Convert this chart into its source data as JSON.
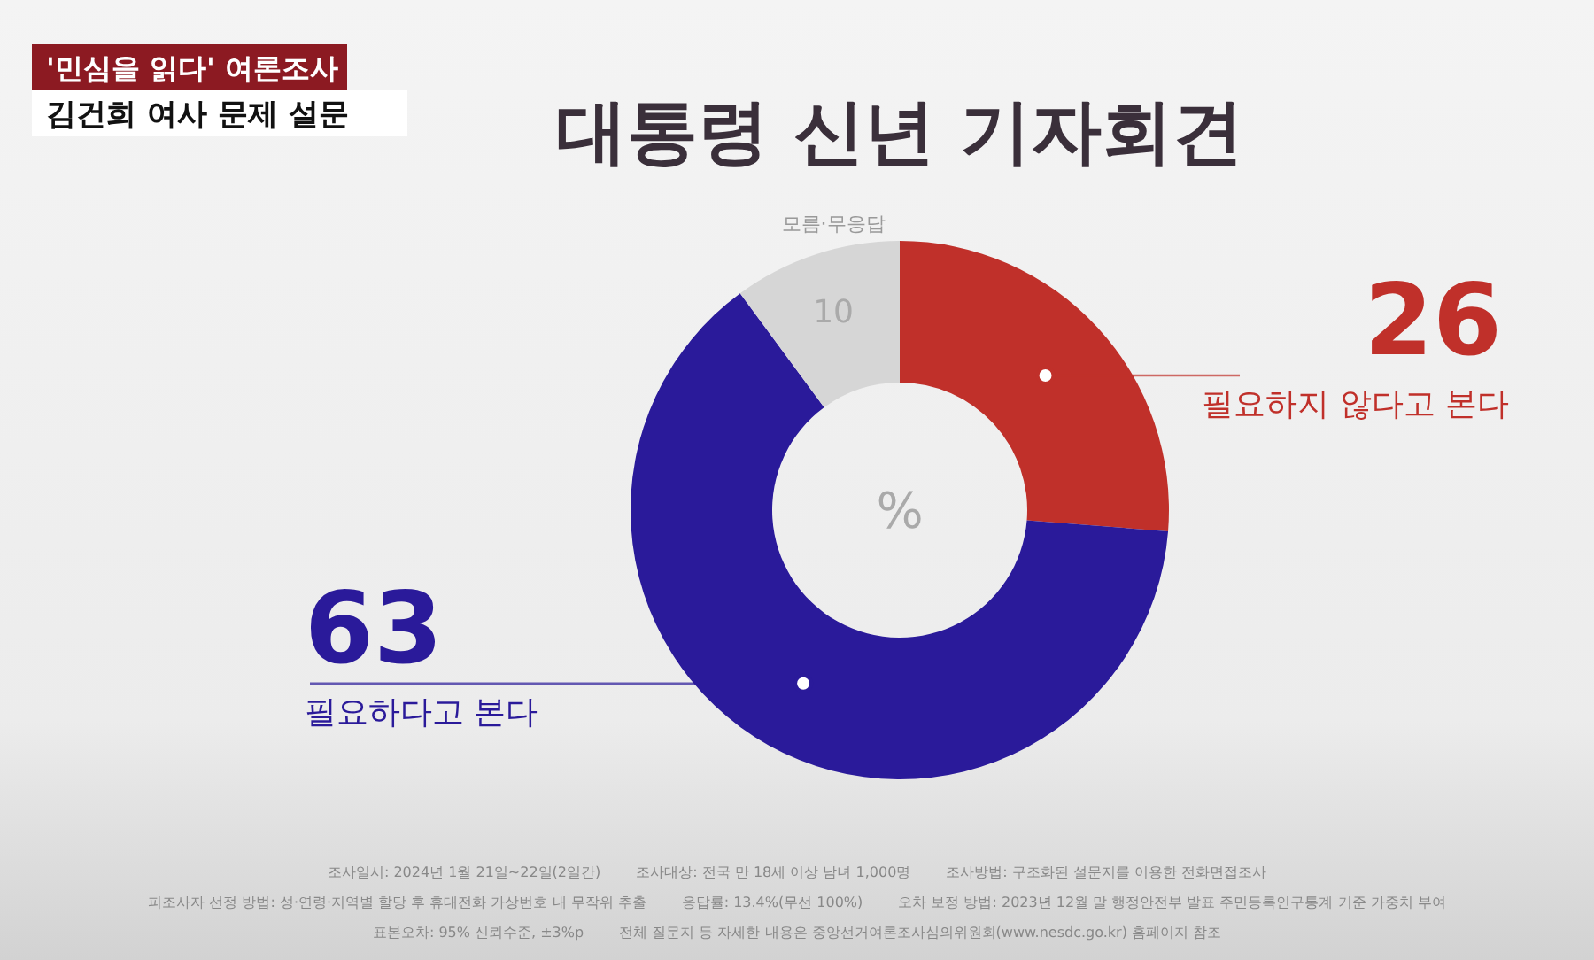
{
  "chart_data": {
    "type": "donut",
    "title": "대통령 신년 기자회견",
    "categories": [
      "필요하지 않다고 본다",
      "필요하다고 본다",
      "모름·무응답"
    ],
    "values": [
      26,
      63,
      10
    ],
    "colors": [
      "#c0302a",
      "#2a1a9a",
      "#d6d6d6"
    ],
    "data_labels": true,
    "annotations": [
      "'민심을 읽다' 여론조사",
      "김건희 여사 문제 설문",
      "%",
      "조사일시: 2024년 1월 21일~22일(2일간)",
      "조사대상: 전국 만 18세 이상 남녀 1,000명",
      "조사방법: 구조화된 설문지를 이용한 전화면접조사",
      "피조사자 선정 방법: 성·연령·지역별 할당 후 휴대전화 가상번호 내 무작위 추출",
      "응답률: 13.4%(무선 100%)",
      "오차 보정 방법: 2023년 12월 말 행정안전부 발표 주민등록인구통계 기준 가중치 부여",
      "표본오차: 95% 신뢰수준, ±3%p",
      "전체 질문지 등 자세한 내용은 중앙선거여론조사심의위원회(www.nesdc.go.kr) 홈페이지 참조"
    ]
  }
}
